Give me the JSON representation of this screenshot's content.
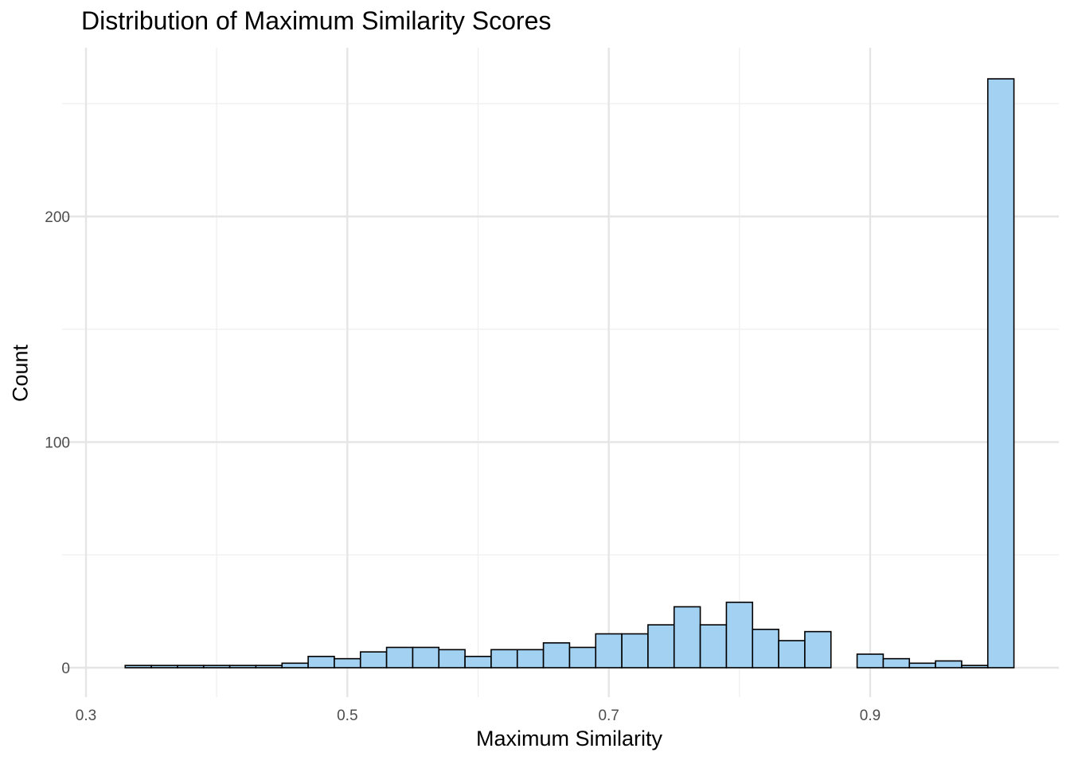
{
  "chart_data": {
    "type": "bar",
    "title": "Distribution of Maximum Similarity Scores",
    "xlabel": "Maximum Similarity",
    "ylabel": "Count",
    "xlim": [
      0.3,
      1.0
    ],
    "ylim": [
      0,
      260
    ],
    "x_ticks": [
      0.3,
      0.5,
      0.7,
      0.9
    ],
    "x_tick_labels": [
      "0.3",
      "0.5",
      "0.7",
      "0.9"
    ],
    "y_ticks": [
      0,
      100,
      200
    ],
    "y_tick_labels": [
      "0",
      "100",
      "200"
    ],
    "grid": true,
    "bin_width": 0.02,
    "bins": [
      {
        "x0": 0.33,
        "x1": 0.35,
        "count": 1
      },
      {
        "x0": 0.35,
        "x1": 0.37,
        "count": 1
      },
      {
        "x0": 0.37,
        "x1": 0.39,
        "count": 1
      },
      {
        "x0": 0.39,
        "x1": 0.41,
        "count": 1
      },
      {
        "x0": 0.41,
        "x1": 0.43,
        "count": 1
      },
      {
        "x0": 0.43,
        "x1": 0.45,
        "count": 1
      },
      {
        "x0": 0.45,
        "x1": 0.47,
        "count": 2
      },
      {
        "x0": 0.47,
        "x1": 0.49,
        "count": 5
      },
      {
        "x0": 0.49,
        "x1": 0.51,
        "count": 4
      },
      {
        "x0": 0.51,
        "x1": 0.53,
        "count": 7
      },
      {
        "x0": 0.53,
        "x1": 0.55,
        "count": 9
      },
      {
        "x0": 0.55,
        "x1": 0.57,
        "count": 9
      },
      {
        "x0": 0.57,
        "x1": 0.59,
        "count": 8
      },
      {
        "x0": 0.59,
        "x1": 0.61,
        "count": 5
      },
      {
        "x0": 0.61,
        "x1": 0.63,
        "count": 8
      },
      {
        "x0": 0.63,
        "x1": 0.65,
        "count": 8
      },
      {
        "x0": 0.65,
        "x1": 0.67,
        "count": 11
      },
      {
        "x0": 0.67,
        "x1": 0.69,
        "count": 9
      },
      {
        "x0": 0.69,
        "x1": 0.71,
        "count": 15
      },
      {
        "x0": 0.71,
        "x1": 0.73,
        "count": 15
      },
      {
        "x0": 0.73,
        "x1": 0.75,
        "count": 19
      },
      {
        "x0": 0.75,
        "x1": 0.77,
        "count": 27
      },
      {
        "x0": 0.77,
        "x1": 0.79,
        "count": 19
      },
      {
        "x0": 0.79,
        "x1": 0.81,
        "count": 29
      },
      {
        "x0": 0.81,
        "x1": 0.83,
        "count": 17
      },
      {
        "x0": 0.83,
        "x1": 0.85,
        "count": 12
      },
      {
        "x0": 0.85,
        "x1": 0.87,
        "count": 16
      },
      {
        "x0": 0.87,
        "x1": 0.89,
        "count": 0
      },
      {
        "x0": 0.89,
        "x1": 0.91,
        "count": 6
      },
      {
        "x0": 0.91,
        "x1": 0.93,
        "count": 4
      },
      {
        "x0": 0.93,
        "x1": 0.95,
        "count": 2
      },
      {
        "x0": 0.95,
        "x1": 0.97,
        "count": 3
      },
      {
        "x0": 0.97,
        "x1": 0.99,
        "count": 1
      },
      {
        "x0": 0.99,
        "x1": 1.01,
        "count": 261
      }
    ],
    "colors": {
      "bar_fill": "#a3d1f2",
      "bar_stroke": "#000000",
      "grid_major": "#e5e5e5",
      "grid_minor": "#efefef",
      "tick_text": "#4d4d4d"
    }
  }
}
